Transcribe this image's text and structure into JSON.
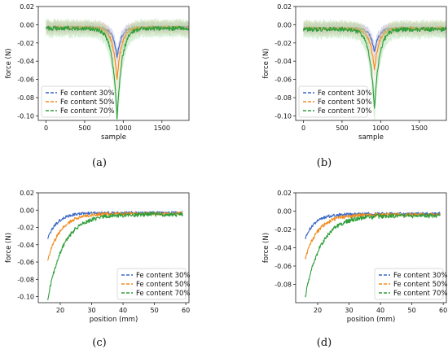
{
  "colors": {
    "s30": "#3a66c4",
    "s50": "#f08a1c",
    "s70": "#2e9e3a",
    "band30": "#9fb4ea",
    "band50": "#f7c6a0",
    "band70": "#a6dba6"
  },
  "captions": [
    "(a)",
    "(b)",
    "(c)",
    "(d)"
  ],
  "chart_data": [
    {
      "type": "line",
      "panel": "a",
      "xlabel": "sample",
      "ylabel": "force (N)",
      "xlim": [
        -100,
        1850
      ],
      "ylim": [
        -0.105,
        0.02
      ],
      "xticks": [
        0,
        500,
        1000,
        1500
      ],
      "yticks": [
        0.02,
        0.0,
        -0.02,
        -0.04,
        -0.06,
        -0.08,
        -0.1
      ],
      "grid": false,
      "legend_position": "lower-left",
      "shape": "dip",
      "dip_center": 920,
      "series": [
        {
          "name": "Fe content 30%",
          "min": -0.036,
          "baseline": -0.003
        },
        {
          "name": "Fe content 50%",
          "min": -0.06,
          "baseline": -0.003
        },
        {
          "name": "Fe content 70%",
          "min": -0.103,
          "baseline": -0.004
        }
      ]
    },
    {
      "type": "line",
      "panel": "b",
      "xlabel": "sample",
      "ylabel": "force (N)",
      "xlim": [
        -100,
        1850
      ],
      "ylim": [
        -0.105,
        0.02
      ],
      "xticks": [
        0,
        500,
        1000,
        1500
      ],
      "yticks": [
        0.02,
        0.0,
        -0.02,
        -0.04,
        -0.06,
        -0.08,
        -0.1
      ],
      "grid": false,
      "legend_position": "lower-left",
      "shape": "dip",
      "dip_center": 920,
      "series": [
        {
          "name": "Fe content 30%",
          "min": -0.03,
          "baseline": -0.004
        },
        {
          "name": "Fe content 50%",
          "min": -0.05,
          "baseline": -0.004
        },
        {
          "name": "Fe content 70%",
          "min": -0.092,
          "baseline": -0.005
        }
      ]
    },
    {
      "type": "line",
      "panel": "c",
      "xlabel": "position (mm)",
      "ylabel": "force (N)",
      "xlim": [
        13,
        61
      ],
      "ylim": [
        -0.107,
        0.02
      ],
      "xticks": [
        20,
        30,
        40,
        50,
        60
      ],
      "yticks": [
        0.02,
        0.0,
        -0.02,
        -0.04,
        -0.06,
        -0.08,
        -0.1
      ],
      "grid": false,
      "legend_position": "lower-right",
      "shape": "decay",
      "x_start": 16,
      "x_end": 59,
      "series": [
        {
          "name": "Fe content 30%",
          "min": -0.033,
          "baseline": -0.003
        },
        {
          "name": "Fe content 50%",
          "min": -0.058,
          "baseline": -0.004
        },
        {
          "name": "Fe content 70%",
          "min": -0.104,
          "baseline": -0.005
        }
      ]
    },
    {
      "type": "line",
      "panel": "d",
      "xlabel": "position (mm)",
      "ylabel": "force (N)",
      "xlim": [
        13,
        61
      ],
      "ylim": [
        -0.1,
        0.02
      ],
      "xticks": [
        20,
        30,
        40,
        50,
        60
      ],
      "yticks": [
        0.02,
        0.0,
        -0.02,
        -0.04,
        -0.06,
        -0.08
      ],
      "grid": false,
      "legend_position": "lower-right",
      "shape": "decay",
      "x_start": 16,
      "x_end": 59,
      "series": [
        {
          "name": "Fe content 30%",
          "min": -0.03,
          "baseline": -0.003
        },
        {
          "name": "Fe content 50%",
          "min": -0.052,
          "baseline": -0.004
        },
        {
          "name": "Fe content 70%",
          "min": -0.094,
          "baseline": -0.005
        }
      ]
    }
  ]
}
